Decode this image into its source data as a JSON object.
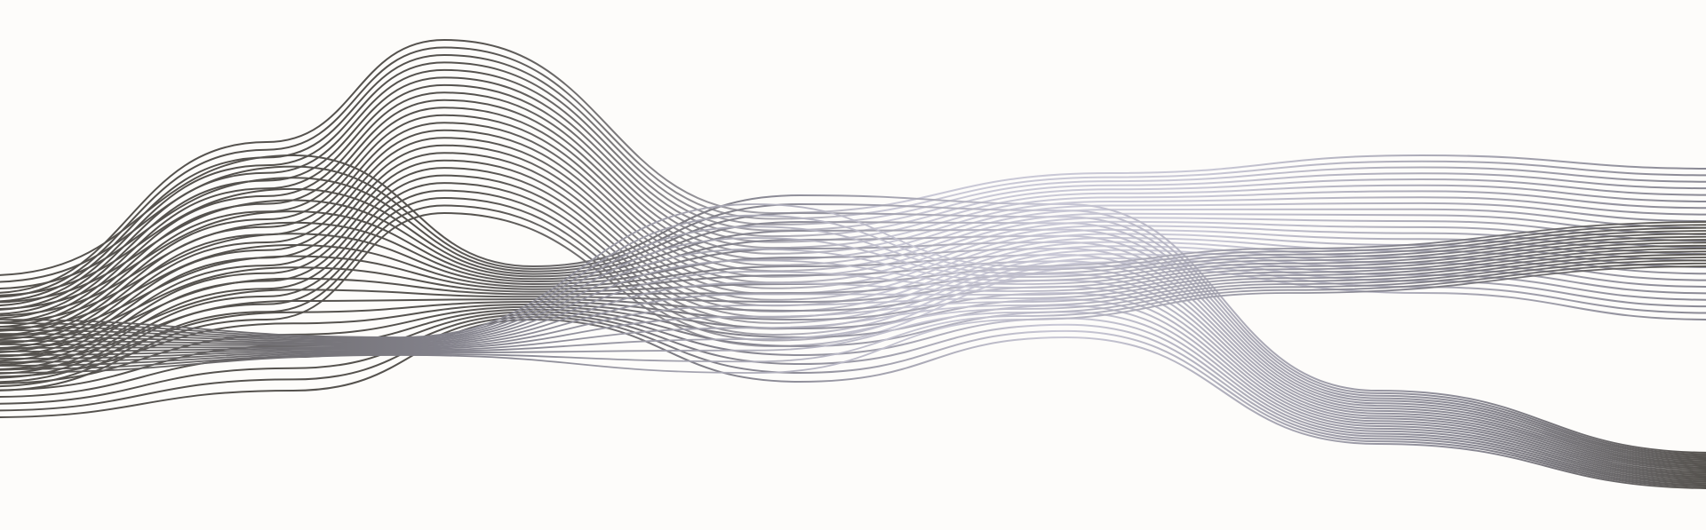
{
  "artwork": {
    "background_color": "#fdfcfa",
    "line_colors": {
      "dark": "#55524e",
      "mid": "#8a8994",
      "light": "#c9c8d6"
    },
    "band_a_line_count": 24,
    "band_b_line_count": 22,
    "band_c_line_count": 16
  }
}
